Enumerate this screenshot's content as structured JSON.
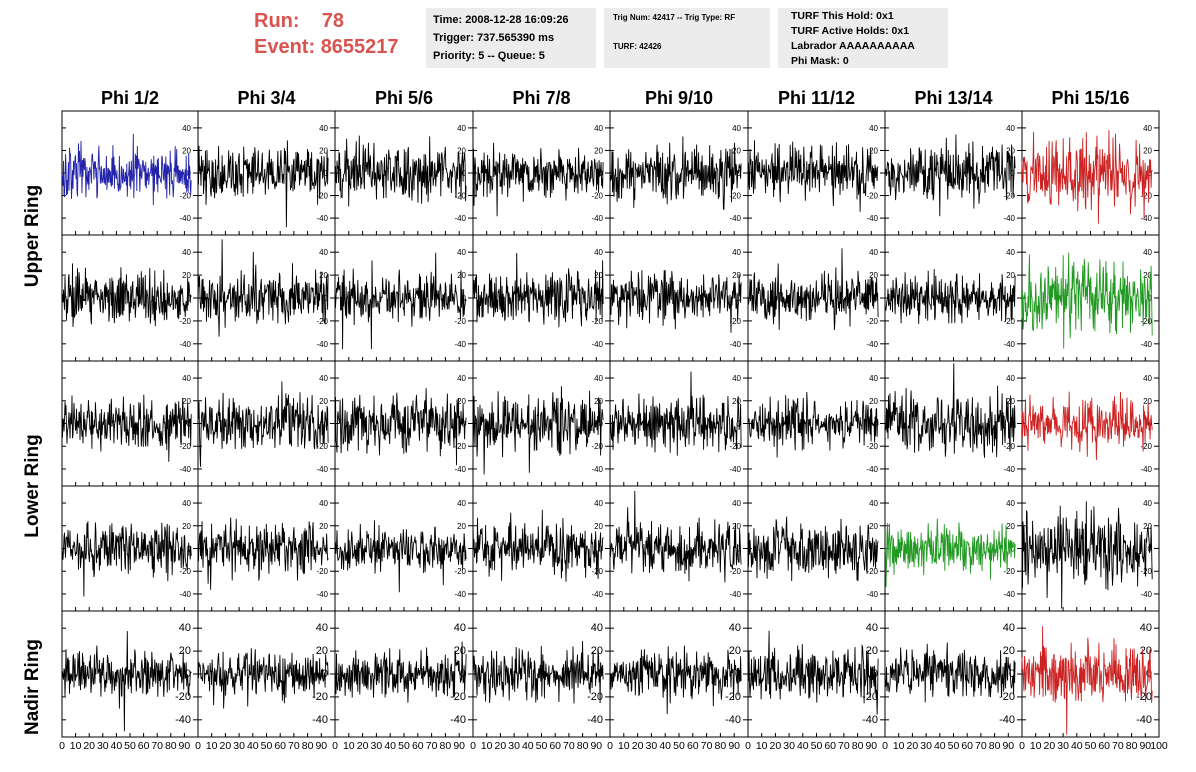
{
  "header": {
    "run_label": "Run:",
    "run_value": "78",
    "event_label": "Event:",
    "event_value": "8655217",
    "time": "Time: 2008-12-28 16:09:26",
    "trigger": "Trigger: 737.565390 ms",
    "priority": "Priority: 5 -- Queue: 5",
    "trig_num": "Trig Num: 42417 -- Trig Type: RF",
    "turf": "TURF: 42426",
    "turf_this_hold": "TURF This Hold: 0x1",
    "turf_active_holds": "TURF Active Holds: 0x1",
    "labrador": "Labrador AAAAAAAAAA",
    "phi_mask": "Phi Mask: 0"
  },
  "colors": {
    "header_red": "#d9534f",
    "info_bg": "#ececec",
    "trace_default": "#000000",
    "trace_blue": "#2222aa",
    "trace_red": "#cc2222",
    "trace_green": "#229922"
  },
  "chart_data": {
    "type": "line",
    "columns": [
      "Phi 1/2",
      "Phi 3/4",
      "Phi 5/6",
      "Phi 7/8",
      "Phi 9/10",
      "Phi 11/12",
      "Phi 13/14",
      "Phi 15/16"
    ],
    "row_labels": [
      "Upper Ring",
      "Lower Ring",
      "Nadir Ring"
    ],
    "xlim": [
      0,
      100
    ],
    "ylim": [
      -55,
      55
    ],
    "x_ticks": [
      0,
      10,
      20,
      30,
      40,
      50,
      60,
      70,
      80,
      90,
      100
    ],
    "x_tick_labels": [
      "0",
      "10",
      "20",
      "30",
      "40",
      "50",
      "60",
      "70",
      "80",
      "90",
      "100"
    ],
    "y_ticks": [
      -40,
      -20,
      0,
      20,
      40
    ],
    "y_tick_labels": [
      "-40",
      "-20",
      "0",
      "20",
      "40"
    ],
    "samples_per_trace": 260,
    "trace_x_max": 95,
    "panel_rows": 5,
    "panel_cols": 8,
    "panel_colors": [
      [
        "blue",
        "black",
        "black",
        "black",
        "black",
        "black",
        "black",
        "red"
      ],
      [
        "black",
        "black",
        "black",
        "black",
        "black",
        "black",
        "black",
        "green"
      ],
      [
        "black",
        "black",
        "black",
        "black",
        "black",
        "black",
        "black",
        "red"
      ],
      [
        "black",
        "black",
        "black",
        "black",
        "black",
        "black",
        "green",
        "black"
      ],
      [
        "black",
        "black",
        "black",
        "black",
        "black",
        "black",
        "black",
        "red"
      ]
    ],
    "panel_amplitudes": [
      [
        11,
        11,
        12,
        11,
        12,
        11,
        12,
        15
      ],
      [
        12,
        11,
        10,
        12,
        10,
        11,
        10,
        15
      ],
      [
        11,
        12,
        13,
        12,
        11,
        10,
        13,
        12
      ],
      [
        11,
        11,
        10,
        11,
        11,
        12,
        11,
        15
      ],
      [
        10,
        10,
        10,
        11,
        10,
        11,
        10,
        13
      ]
    ]
  }
}
